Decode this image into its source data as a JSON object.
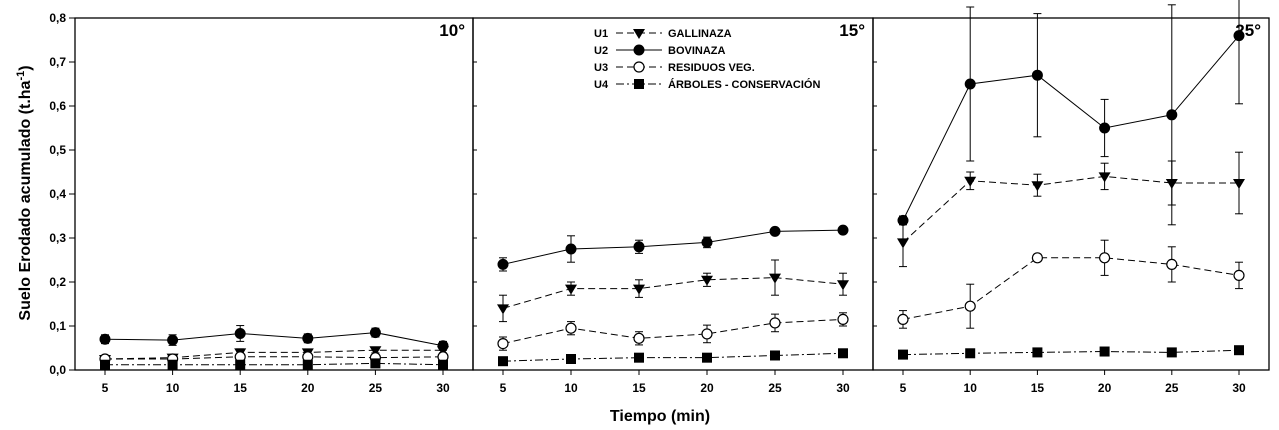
{
  "chart_data": {
    "type": "line",
    "ylabel_main": "Suelo Erodado acumulado (t.ha",
    "ylabel_sup": "-1",
    "ylabel_close": ")",
    "xlabel": "Tiempo (min)",
    "ylim": [
      0,
      0.8
    ],
    "yticks": [
      "0,0",
      "0,1",
      "0,2",
      "0,3",
      "0,4",
      "0,5",
      "0,6",
      "0,7",
      "0,8"
    ],
    "x": [
      5,
      10,
      15,
      20,
      25,
      30
    ],
    "xtick_labels": [
      "5",
      "10",
      "15",
      "20",
      "25",
      "30"
    ],
    "legend": [
      {
        "code": "U1",
        "label": "GALLINAZA",
        "marker": "triangle-down-filled",
        "line": "dashed"
      },
      {
        "code": "U2",
        "label": "BOVINAZA",
        "marker": "circle-filled",
        "line": "solid"
      },
      {
        "code": "U3",
        "label": "RESIDUOS VEG.",
        "marker": "circle-open",
        "line": "dashed"
      },
      {
        "code": "U4",
        "label": "ÁRBOLES - CONSERVACIÓN",
        "marker": "square-filled",
        "line": "dashdot"
      }
    ],
    "panels": [
      {
        "title": "10°",
        "series": [
          {
            "code": "U1",
            "values": [
              0.025,
              0.028,
              0.04,
              0.04,
              0.045,
              0.045
            ],
            "err": [
              0.005,
              0.005,
              0.008,
              0.006,
              0.006,
              0.006
            ]
          },
          {
            "code": "U2",
            "values": [
              0.07,
              0.068,
              0.083,
              0.072,
              0.085,
              0.055
            ],
            "err": [
              0.01,
              0.012,
              0.018,
              0.01,
              0.01,
              0.01
            ]
          },
          {
            "code": "U3",
            "values": [
              0.025,
              0.025,
              0.03,
              0.03,
              0.028,
              0.03
            ],
            "err": [
              0.004,
              0.004,
              0.005,
              0.004,
              0.004,
              0.004
            ]
          },
          {
            "code": "U4",
            "values": [
              0.012,
              0.012,
              0.012,
              0.012,
              0.015,
              0.012
            ],
            "err": [
              0.003,
              0.003,
              0.003,
              0.003,
              0.003,
              0.003
            ]
          }
        ]
      },
      {
        "title": "15°",
        "series": [
          {
            "code": "U1",
            "values": [
              0.14,
              0.185,
              0.185,
              0.205,
              0.21,
              0.195
            ],
            "err": [
              0.03,
              0.015,
              0.02,
              0.015,
              0.04,
              0.025
            ]
          },
          {
            "code": "U2",
            "values": [
              0.24,
              0.275,
              0.28,
              0.29,
              0.315,
              0.318
            ],
            "err": [
              0.015,
              0.03,
              0.015,
              0.012,
              0.005,
              0.006
            ]
          },
          {
            "code": "U3",
            "values": [
              0.06,
              0.095,
              0.072,
              0.082,
              0.107,
              0.115
            ],
            "err": [
              0.015,
              0.015,
              0.015,
              0.02,
              0.02,
              0.015
            ]
          },
          {
            "code": "U4",
            "values": [
              0.02,
              0.025,
              0.028,
              0.028,
              0.033,
              0.038
            ],
            "err": [
              0.003,
              0.003,
              0.003,
              0.003,
              0.003,
              0.003
            ]
          }
        ]
      },
      {
        "title": "25°",
        "series": [
          {
            "code": "U1",
            "values": [
              0.29,
              0.43,
              0.42,
              0.44,
              0.425,
              0.425
            ],
            "err": [
              0.055,
              0.02,
              0.025,
              0.03,
              0.05,
              0.07
            ]
          },
          {
            "code": "U2",
            "values": [
              0.34,
              0.65,
              0.67,
              0.55,
              0.58,
              0.76
            ],
            "err": [
              0.01,
              0.175,
              0.14,
              0.065,
              0.25,
              0.155
            ]
          },
          {
            "code": "U3",
            "values": [
              0.115,
              0.145,
              0.255,
              0.255,
              0.24,
              0.215
            ],
            "err": [
              0.02,
              0.05,
              0.008,
              0.04,
              0.04,
              0.03
            ]
          },
          {
            "code": "U4",
            "values": [
              0.035,
              0.038,
              0.04,
              0.042,
              0.04,
              0.045
            ],
            "err": [
              0.003,
              0.003,
              0.003,
              0.003,
              0.003,
              0.003
            ]
          }
        ]
      }
    ]
  }
}
